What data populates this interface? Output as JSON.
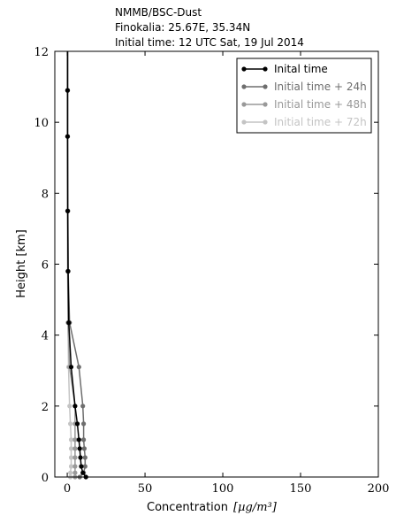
{
  "title_lines": [
    "NMMB/BSC-Dust",
    "Finokalia: 25.67E, 35.34N",
    "Initial time: 12 UTC Sat, 19 Jul 2014"
  ],
  "chart_data": {
    "type": "line",
    "title": "NMMB/BSC-Dust",
    "xlabel": "Concentration",
    "xlabel_unit": "[µg/m³]",
    "ylabel": "Height [km]",
    "xlim": [
      -8,
      200
    ],
    "ylim": [
      0,
      12
    ],
    "xticks": [
      0,
      50,
      100,
      150,
      200
    ],
    "yticks": [
      0,
      2,
      4,
      6,
      8,
      10,
      12
    ],
    "grid": false,
    "legend_position": "top-right",
    "series": [
      {
        "name": "Initial time",
        "color": "#000000",
        "points": [
          [
            12,
            0
          ],
          [
            10,
            0.12
          ],
          [
            9,
            0.3
          ],
          [
            8.5,
            0.55
          ],
          [
            8,
            0.8
          ],
          [
            7.5,
            1.05
          ],
          [
            6.5,
            1.5
          ],
          [
            5,
            2.0
          ],
          [
            2.5,
            3.1
          ],
          [
            1,
            4.35
          ],
          [
            0.5,
            5.8
          ],
          [
            0.3,
            7.5
          ],
          [
            0.2,
            9.6
          ],
          [
            0.2,
            10.9
          ],
          [
            0.2,
            12
          ]
        ]
      },
      {
        "name": "Initial time + 24h",
        "color": "#6e6e6e",
        "points": [
          [
            8,
            0
          ],
          [
            10.5,
            0.12
          ],
          [
            11.5,
            0.3
          ],
          [
            11.5,
            0.55
          ],
          [
            11,
            0.8
          ],
          [
            10.5,
            1.05
          ],
          [
            10.5,
            1.5
          ],
          [
            10,
            2.0
          ],
          [
            7.5,
            3.1
          ],
          [
            1.5,
            4.35
          ],
          [
            0.6,
            5.8
          ],
          [
            0.4,
            7.5
          ],
          [
            0.3,
            9.6
          ],
          [
            0.3,
            10.9
          ],
          [
            0.3,
            12
          ]
        ]
      },
      {
        "name": "Initial time + 48h",
        "color": "#999999",
        "points": [
          [
            5,
            0
          ],
          [
            5,
            0.12
          ],
          [
            5,
            0.3
          ],
          [
            5,
            0.55
          ],
          [
            5,
            0.8
          ],
          [
            5,
            1.05
          ],
          [
            5,
            1.5
          ],
          [
            5,
            2.0
          ],
          [
            1.5,
            3.1
          ],
          [
            0.5,
            4.35
          ],
          [
            0.3,
            5.8
          ],
          [
            0.2,
            7.5
          ],
          [
            0.2,
            9.6
          ],
          [
            0.2,
            10.9
          ],
          [
            0.2,
            12
          ]
        ]
      },
      {
        "name": "Initial time + 72h",
        "color": "#c4c4c4",
        "points": [
          [
            2,
            0
          ],
          [
            2,
            0.12
          ],
          [
            2.5,
            0.3
          ],
          [
            2.5,
            0.55
          ],
          [
            2.5,
            0.8
          ],
          [
            2.5,
            1.05
          ],
          [
            2,
            1.5
          ],
          [
            1.5,
            2.0
          ],
          [
            0.8,
            3.1
          ],
          [
            0.4,
            4.35
          ],
          [
            0.3,
            5.8
          ],
          [
            0.2,
            7.5
          ],
          [
            0.2,
            9.6
          ],
          [
            0.2,
            10.9
          ],
          [
            0.2,
            12
          ]
        ]
      }
    ]
  },
  "legend": {
    "labels": [
      "Inital time",
      "Initial time + 24h",
      "Initial time + 48h",
      "Initial time + 72h"
    ]
  }
}
